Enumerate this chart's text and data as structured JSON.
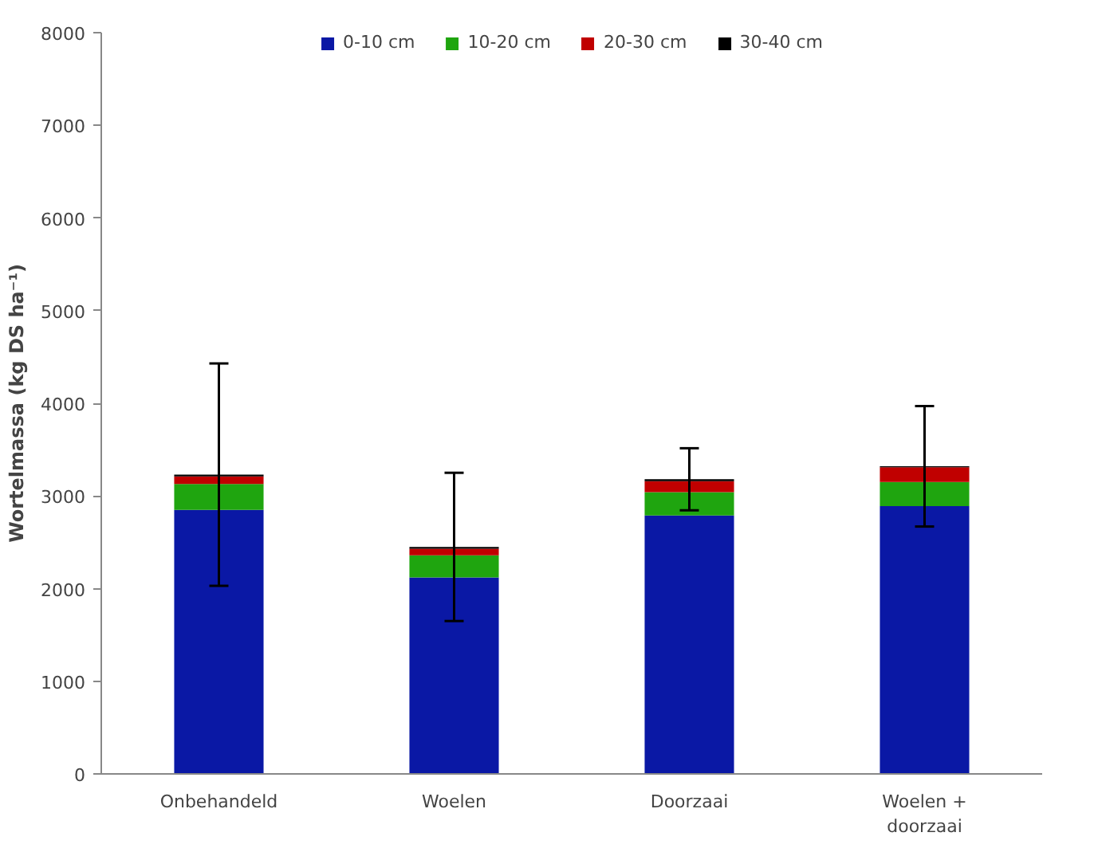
{
  "chart_data": {
    "type": "bar",
    "stacked": true,
    "ylabel": "Wortelmassa (kg DS ha⁻¹)",
    "categories": [
      "Onbehandeld",
      "Woelen",
      "Doorzaai",
      "Woelen + doorzaai"
    ],
    "series": [
      {
        "name": "0-10 cm",
        "color": "#0a18a5",
        "values": [
          2850,
          2120,
          2790,
          2890
        ]
      },
      {
        "name": "10-20 cm",
        "color": "#1fa50f",
        "values": [
          280,
          240,
          250,
          260
        ]
      },
      {
        "name": "20-30 cm",
        "color": "#c00000",
        "values": [
          80,
          70,
          120,
          160
        ]
      },
      {
        "name": "30-40 cm",
        "color": "#000000",
        "values": [
          20,
          20,
          20,
          10
        ],
        "errors": [
          1200,
          800,
          335,
          650
        ]
      }
    ],
    "ylim": [
      0,
      8000
    ],
    "yticks": [
      0,
      1000,
      2000,
      3000,
      4000,
      5000,
      6000,
      7000,
      8000
    ],
    "grid": false,
    "legend": "top"
  }
}
